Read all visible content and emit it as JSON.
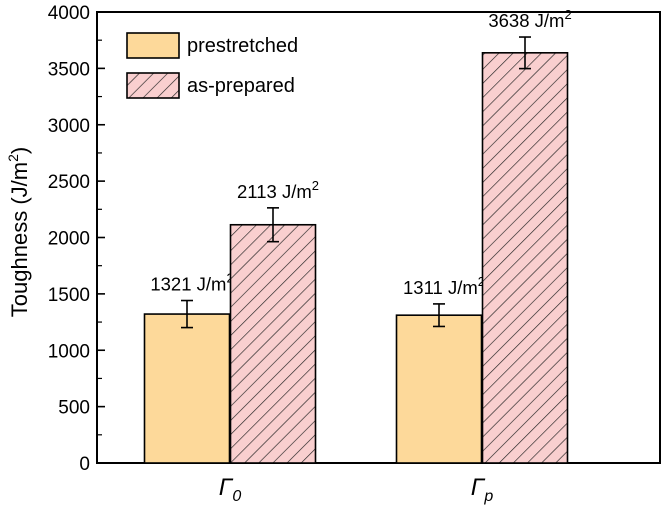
{
  "chart_data": {
    "type": "bar",
    "categories": [
      "Γ",
      "Γ"
    ],
    "category_subscripts": [
      "0",
      "p"
    ],
    "series": [
      {
        "name": "prestretched",
        "values": [
          1321,
          1311
        ],
        "errors": [
          120,
          100
        ],
        "labels": [
          "1321 J/m",
          "1311 J/m"
        ],
        "color": "#fdd99a",
        "pattern": "solid"
      },
      {
        "name": "as-prepared",
        "values": [
          2113,
          3638
        ],
        "errors": [
          150,
          140
        ],
        "labels": [
          "2113 J/m",
          "3638 J/m"
        ],
        "color": "#f9cfcf",
        "pattern": "hatch"
      }
    ],
    "label_superscript": "2",
    "ylabel": "Toughness (J/m",
    "ylabel_superscript": "2",
    "ylabel_close": ")",
    "ylim": [
      0,
      4000
    ],
    "yticks": [
      "0",
      "500",
      "1000",
      "1500",
      "2000",
      "2500",
      "3000",
      "3500",
      "4000"
    ],
    "grid": false,
    "legend_position": "top-left"
  }
}
